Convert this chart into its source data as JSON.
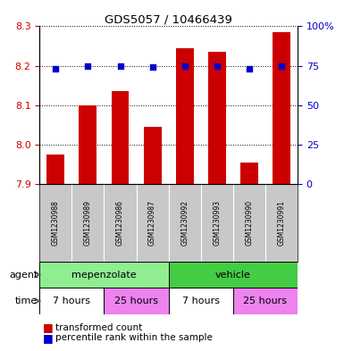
{
  "title": "GDS5057 / 10466439",
  "samples": [
    "GSM1230988",
    "GSM1230989",
    "GSM1230986",
    "GSM1230987",
    "GSM1230992",
    "GSM1230993",
    "GSM1230990",
    "GSM1230991"
  ],
  "bar_values": [
    7.975,
    8.1,
    8.135,
    8.045,
    8.245,
    8.235,
    7.955,
    8.285
  ],
  "percentile_values": [
    73,
    75,
    75,
    74,
    75,
    75,
    73,
    75
  ],
  "ylim": [
    7.9,
    8.3
  ],
  "yticks": [
    7.9,
    8.0,
    8.1,
    8.2,
    8.3
  ],
  "right_yticks": [
    0,
    25,
    50,
    75,
    100
  ],
  "right_ylabels": [
    "0",
    "25",
    "50",
    "75",
    "100%"
  ],
  "bar_color": "#cc0000",
  "dot_color": "#0000cc",
  "bar_bottom": 7.9,
  "agent_labels": [
    "mepenzolate",
    "vehicle"
  ],
  "time_labels": [
    "7 hours",
    "25 hours",
    "7 hours",
    "25 hours"
  ],
  "agent_color_mep": "#90ee90",
  "agent_color_veh": "#44cc44",
  "time_color_7": "#ffffff",
  "time_color_25": "#ee82ee",
  "label_color_left": "#cc0000",
  "label_color_right": "#0000cc",
  "legend_bar_label": "transformed count",
  "legend_dot_label": "percentile rank within the sample",
  "sample_bg": "#c8c8c8",
  "grid_color": "#000000"
}
